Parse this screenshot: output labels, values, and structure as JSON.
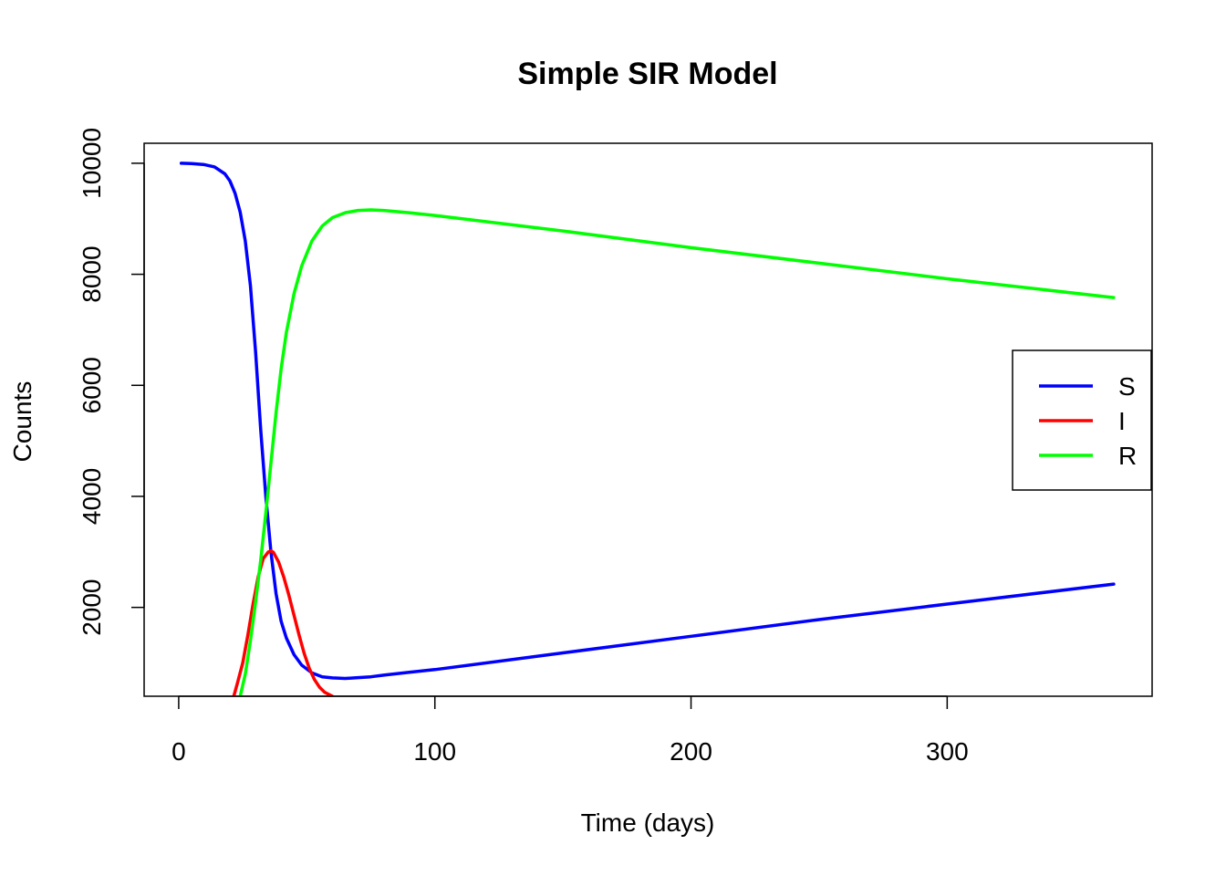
{
  "chart_data": {
    "type": "line",
    "title": "Simple SIR Model",
    "xlabel": "Time (days)",
    "ylabel": "Counts",
    "xlim": [
      -13.5,
      380
    ],
    "ylim": [
      400,
      10360
    ],
    "x_ticks": [
      0,
      100,
      200,
      300
    ],
    "y_ticks": [
      2000,
      4000,
      6000,
      8000,
      10000
    ],
    "grid": false,
    "legend_position": "right",
    "series": [
      {
        "name": "S",
        "color": "#0000ff",
        "x": [
          1,
          5,
          10,
          14,
          18,
          20,
          22,
          24,
          26,
          28,
          30,
          32,
          34,
          36,
          38,
          40,
          42,
          45,
          48,
          52,
          56,
          60,
          65,
          70,
          75,
          80,
          90,
          100,
          150,
          200,
          250,
          300,
          365
        ],
        "y": [
          10000,
          9995,
          9975,
          9935,
          9810,
          9680,
          9460,
          9120,
          8600,
          7800,
          6600,
          5200,
          4000,
          3000,
          2250,
          1750,
          1450,
          1150,
          960,
          820,
          750,
          730,
          720,
          735,
          750,
          780,
          830,
          880,
          1180,
          1480,
          1780,
          2060,
          2420
        ]
      },
      {
        "name": "I",
        "color": "#ff0000",
        "x": [
          21.5,
          23,
          25,
          27,
          29,
          31,
          33,
          35,
          36,
          37,
          39,
          41,
          43,
          45,
          47,
          49,
          51,
          53,
          55,
          57,
          60
        ],
        "y": [
          400,
          650,
          1000,
          1500,
          2050,
          2550,
          2880,
          3000,
          3020,
          2990,
          2820,
          2550,
          2220,
          1860,
          1500,
          1170,
          900,
          700,
          560,
          470,
          400
        ]
      },
      {
        "name": "R",
        "color": "#00ff00",
        "x": [
          24,
          26,
          28,
          30,
          32,
          34,
          36,
          38,
          40,
          42,
          45,
          48,
          52,
          56,
          60,
          65,
          70,
          75,
          80,
          90,
          100,
          150,
          200,
          250,
          300,
          365
        ],
        "y": [
          400,
          800,
          1400,
          2100,
          2850,
          3700,
          4600,
          5500,
          6300,
          6950,
          7650,
          8150,
          8600,
          8870,
          9020,
          9110,
          9150,
          9160,
          9150,
          9110,
          9060,
          8780,
          8480,
          8200,
          7920,
          7580
        ]
      }
    ]
  }
}
